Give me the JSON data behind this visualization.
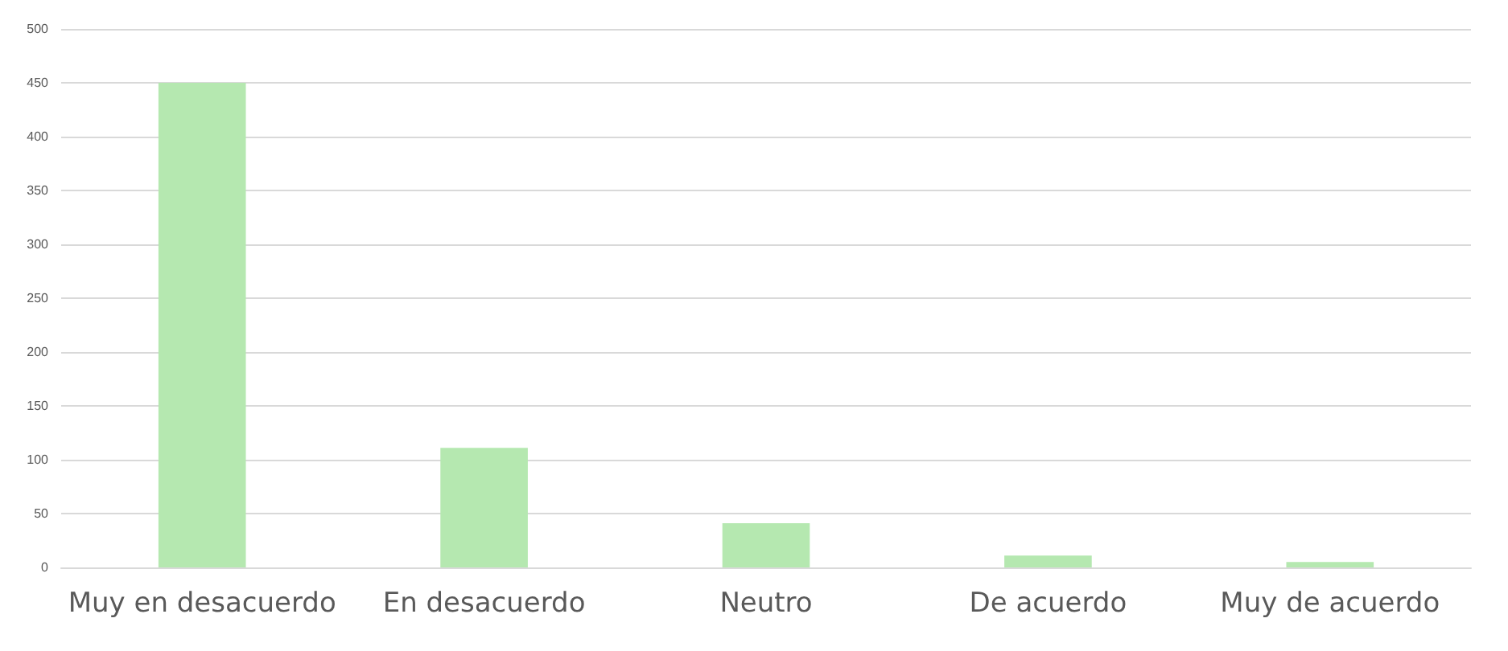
{
  "chart_data": {
    "type": "bar",
    "categories": [
      "Muy en desacuerdo",
      "En desacuerdo",
      "Neutro",
      "De acuerdo",
      "Muy de acuerdo"
    ],
    "values": [
      450,
      111,
      41,
      11,
      5
    ],
    "color": "#b5e8b0",
    "ylim": [
      0,
      500
    ],
    "yticks": [
      0,
      50,
      100,
      150,
      200,
      250,
      300,
      350,
      400,
      450,
      500
    ],
    "grid": true
  }
}
